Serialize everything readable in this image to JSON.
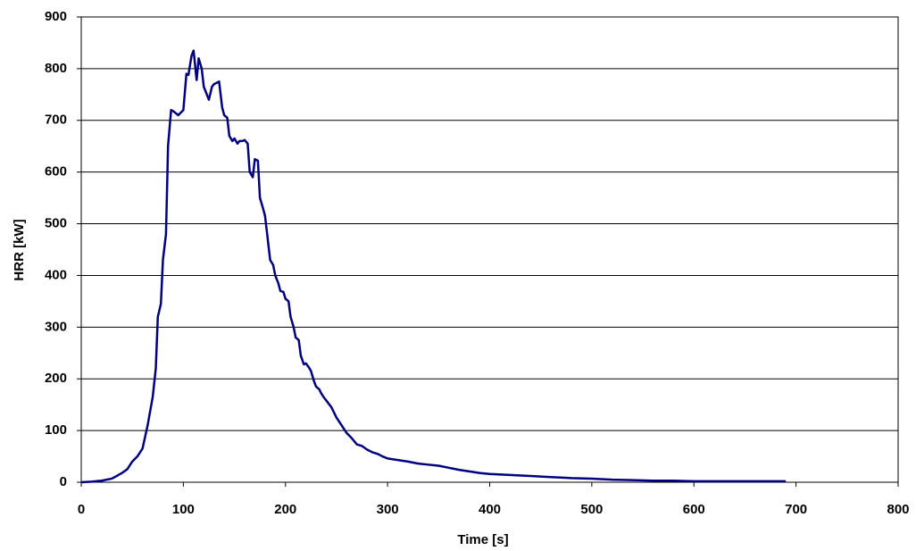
{
  "chart_data": {
    "type": "line",
    "x_label": "Time [s]",
    "y_label": "HRR [kW]",
    "x": [
      0,
      10,
      20,
      30,
      40,
      45,
      50,
      55,
      60,
      65,
      70,
      73,
      75,
      78,
      80,
      83,
      85,
      88,
      90,
      95,
      100,
      103,
      105,
      108,
      110,
      113,
      115,
      118,
      120,
      125,
      128,
      130,
      135,
      138,
      140,
      143,
      145,
      148,
      150,
      153,
      155,
      158,
      160,
      163,
      165,
      168,
      170,
      173,
      175,
      178,
      180,
      185,
      188,
      190,
      193,
      195,
      198,
      200,
      203,
      205,
      208,
      210,
      213,
      215,
      218,
      220,
      223,
      225,
      228,
      230,
      233,
      235,
      238,
      240,
      245,
      250,
      255,
      260,
      265,
      270,
      275,
      280,
      285,
      290,
      295,
      300,
      310,
      320,
      330,
      340,
      350,
      360,
      370,
      380,
      390,
      400,
      420,
      440,
      460,
      480,
      500,
      520,
      540,
      560,
      580,
      600,
      620,
      640,
      660,
      690
    ],
    "series": [
      {
        "color": "#000080",
        "values": [
          0,
          1,
          3,
          7,
          18,
          25,
          40,
          50,
          65,
          110,
          165,
          220,
          320,
          345,
          430,
          480,
          650,
          720,
          718,
          710,
          720,
          790,
          788,
          825,
          835,
          778,
          820,
          800,
          765,
          740,
          765,
          770,
          775,
          725,
          710,
          705,
          670,
          660,
          665,
          655,
          660,
          660,
          662,
          655,
          600,
          590,
          625,
          622,
          550,
          530,
          515,
          430,
          420,
          400,
          385,
          370,
          368,
          355,
          350,
          320,
          300,
          280,
          275,
          245,
          228,
          230,
          222,
          215,
          195,
          185,
          180,
          172,
          163,
          158,
          145,
          125,
          110,
          95,
          85,
          73,
          70,
          63,
          58,
          55,
          50,
          46,
          43,
          40,
          36,
          34,
          32,
          28,
          24,
          21,
          18,
          16,
          14,
          12,
          10,
          8,
          7,
          5,
          4,
          3,
          3,
          2,
          2,
          2,
          2,
          2
        ]
      }
    ],
    "xlim": [
      0,
      800
    ],
    "xticks": [
      0,
      100,
      200,
      300,
      400,
      500,
      600,
      700,
      800
    ],
    "ylim": [
      0,
      900
    ],
    "yticks": [
      0,
      100,
      200,
      300,
      400,
      500,
      600,
      700,
      800,
      900
    ],
    "grid": true
  }
}
